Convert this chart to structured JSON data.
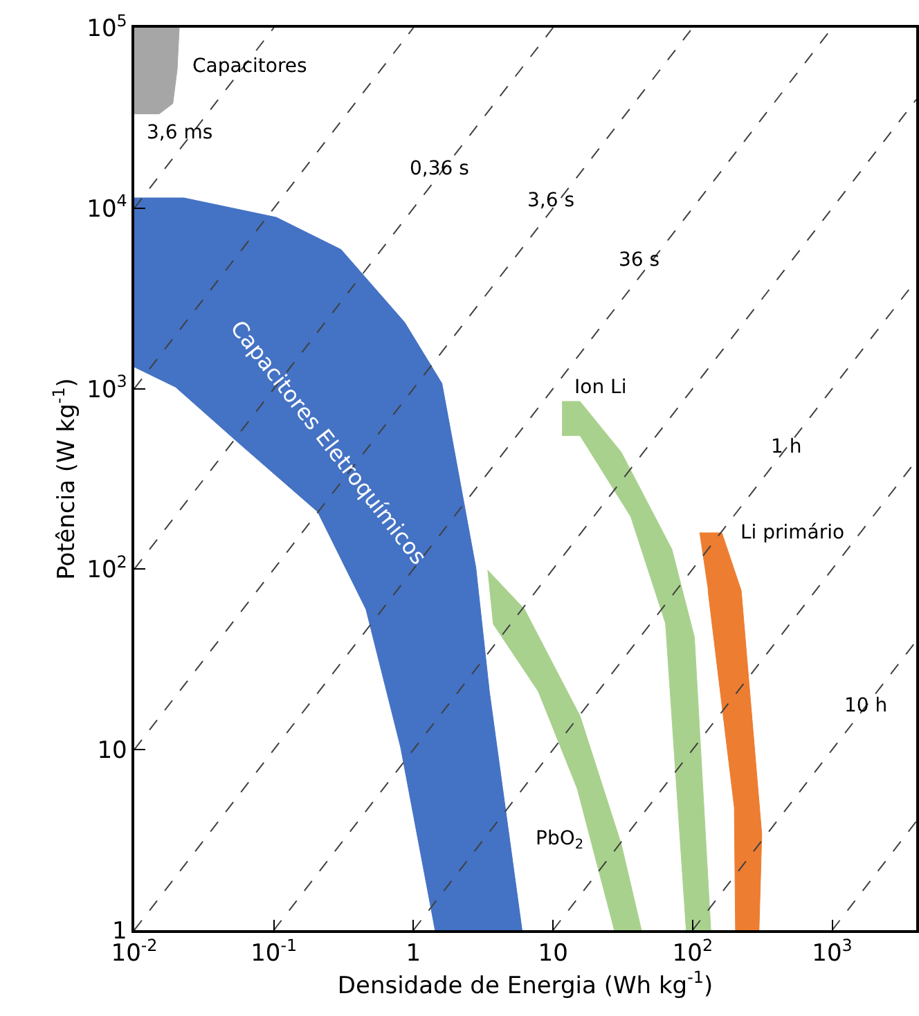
{
  "chart_data": {
    "type": "area",
    "xlabel": "Densidade de Energia (Wh kg$^{-1}$)",
    "ylabel": "Potência (W kg$^{-1}$)",
    "log": "xy",
    "line_style": "dashed",
    "xlim": [
      0.01,
      4000
    ],
    "ylim": [
      1,
      100000
    ],
    "xticks": [
      {
        "value": 0.01,
        "label": "10$^{-2}$"
      },
      {
        "value": 0.1,
        "label": "10$^{-1}$"
      },
      1,
      10,
      {
        "value": 100,
        "label": "10$^{2}$"
      },
      {
        "value": 1000,
        "label": "10$^{3}$"
      }
    ],
    "yticks": [
      1,
      10,
      {
        "value": 100,
        "label": "10$^{2}$"
      },
      {
        "value": 1000,
        "label": "10$^{3}$"
      },
      {
        "value": 10000,
        "label": "10$^{4}$"
      },
      {
        "value": 100000,
        "label": "10$^{5}$"
      }
    ],
    "series": [
      {
        "type": "line",
        "color": "#404040",
        "x": [
          0.01,
          0.1
        ],
        "values": [
          10000,
          100000
        ]
      },
      {
        "type": "line",
        "color": "#404040",
        "x": [
          0.01,
          1
        ],
        "values": [
          1000,
          100000
        ]
      },
      {
        "type": "line",
        "color": "#404040",
        "x": [
          0.01,
          10
        ],
        "values": [
          100,
          100000
        ]
      },
      {
        "type": "line",
        "color": "#404040",
        "x": [
          0.01,
          100
        ],
        "values": [
          10,
          100000
        ]
      },
      {
        "type": "line",
        "color": "#404040",
        "x": [
          0.01,
          1000
        ],
        "values": [
          1,
          100000
        ]
      },
      {
        "type": "line",
        "color": "#404040",
        "x": [
          0.1,
          4000
        ],
        "values": [
          1,
          40000
        ]
      },
      {
        "type": "line",
        "color": "#404040",
        "x": [
          1,
          4000
        ],
        "values": [
          1,
          4000
        ]
      },
      {
        "type": "line",
        "color": "#404040",
        "x": [
          10,
          4000
        ],
        "values": [
          1,
          400
        ]
      },
      {
        "type": "line",
        "color": "#404040",
        "x": [
          100,
          4000
        ],
        "values": [
          1,
          40
        ]
      },
      {
        "type": "line",
        "color": "#404040",
        "x": [
          1000,
          4000
        ],
        "values": [
          1,
          4
        ]
      },
      {
        "color": "#a6a6a6",
        "x": [
          0.01,
          0.021,
          0.0203,
          0.0189,
          0.0151,
          0.01
        ],
        "values": [
          100000,
          100000,
          58900,
          38000,
          33300,
          33300
        ]
      },
      {
        "color": "#4472c4",
        "x": [
          0.01,
          0.0227,
          0.104,
          0.303,
          0.865,
          1.6,
          2.0,
          2.8,
          3.5,
          6.0,
          1.43,
          0.81,
          0.457,
          0.206,
          0.056,
          0.0198,
          0.01
        ],
        "values": [
          11400,
          11400,
          8900,
          5900,
          2330,
          1070,
          420,
          102,
          21,
          1,
          1,
          10.3,
          60,
          208,
          500,
          1020,
          1320
        ]
      },
      {
        "color": "#a9d18e",
        "x": [
          3.39,
          6.25,
          15.6,
          30.8,
          43,
          27.5,
          14.9,
          7.85,
          3.71
        ],
        "values": [
          99,
          60,
          15.4,
          3.0,
          1,
          1,
          6.1,
          21,
          50
        ]
      },
      {
        "color": "#a9d18e",
        "x": [
          11.6,
          15.6,
          30.8,
          71,
          103,
          135,
          90,
          64,
          36,
          15.6,
          11.6
        ],
        "values": [
          850,
          850,
          445,
          129,
          42,
          1,
          1,
          50,
          196,
          550,
          550
        ]
      },
      {
        "color": "#ed7d31",
        "x": [
          112,
          162,
          223,
          313,
          299,
          203,
          199,
          129
        ],
        "values": [
          159,
          159,
          76,
          3.4,
          1,
          1,
          4.8,
          76
        ]
      }
    ],
    "annotations": [
      "Capacitores",
      "3,6 ms",
      "0,36 s",
      "3,6 s",
      "36 s",
      "Ion Li",
      "1 h",
      "Li primário",
      "10 h",
      "PbO$_{2}$",
      "Capacitores Eletroquímicos"
    ]
  }
}
